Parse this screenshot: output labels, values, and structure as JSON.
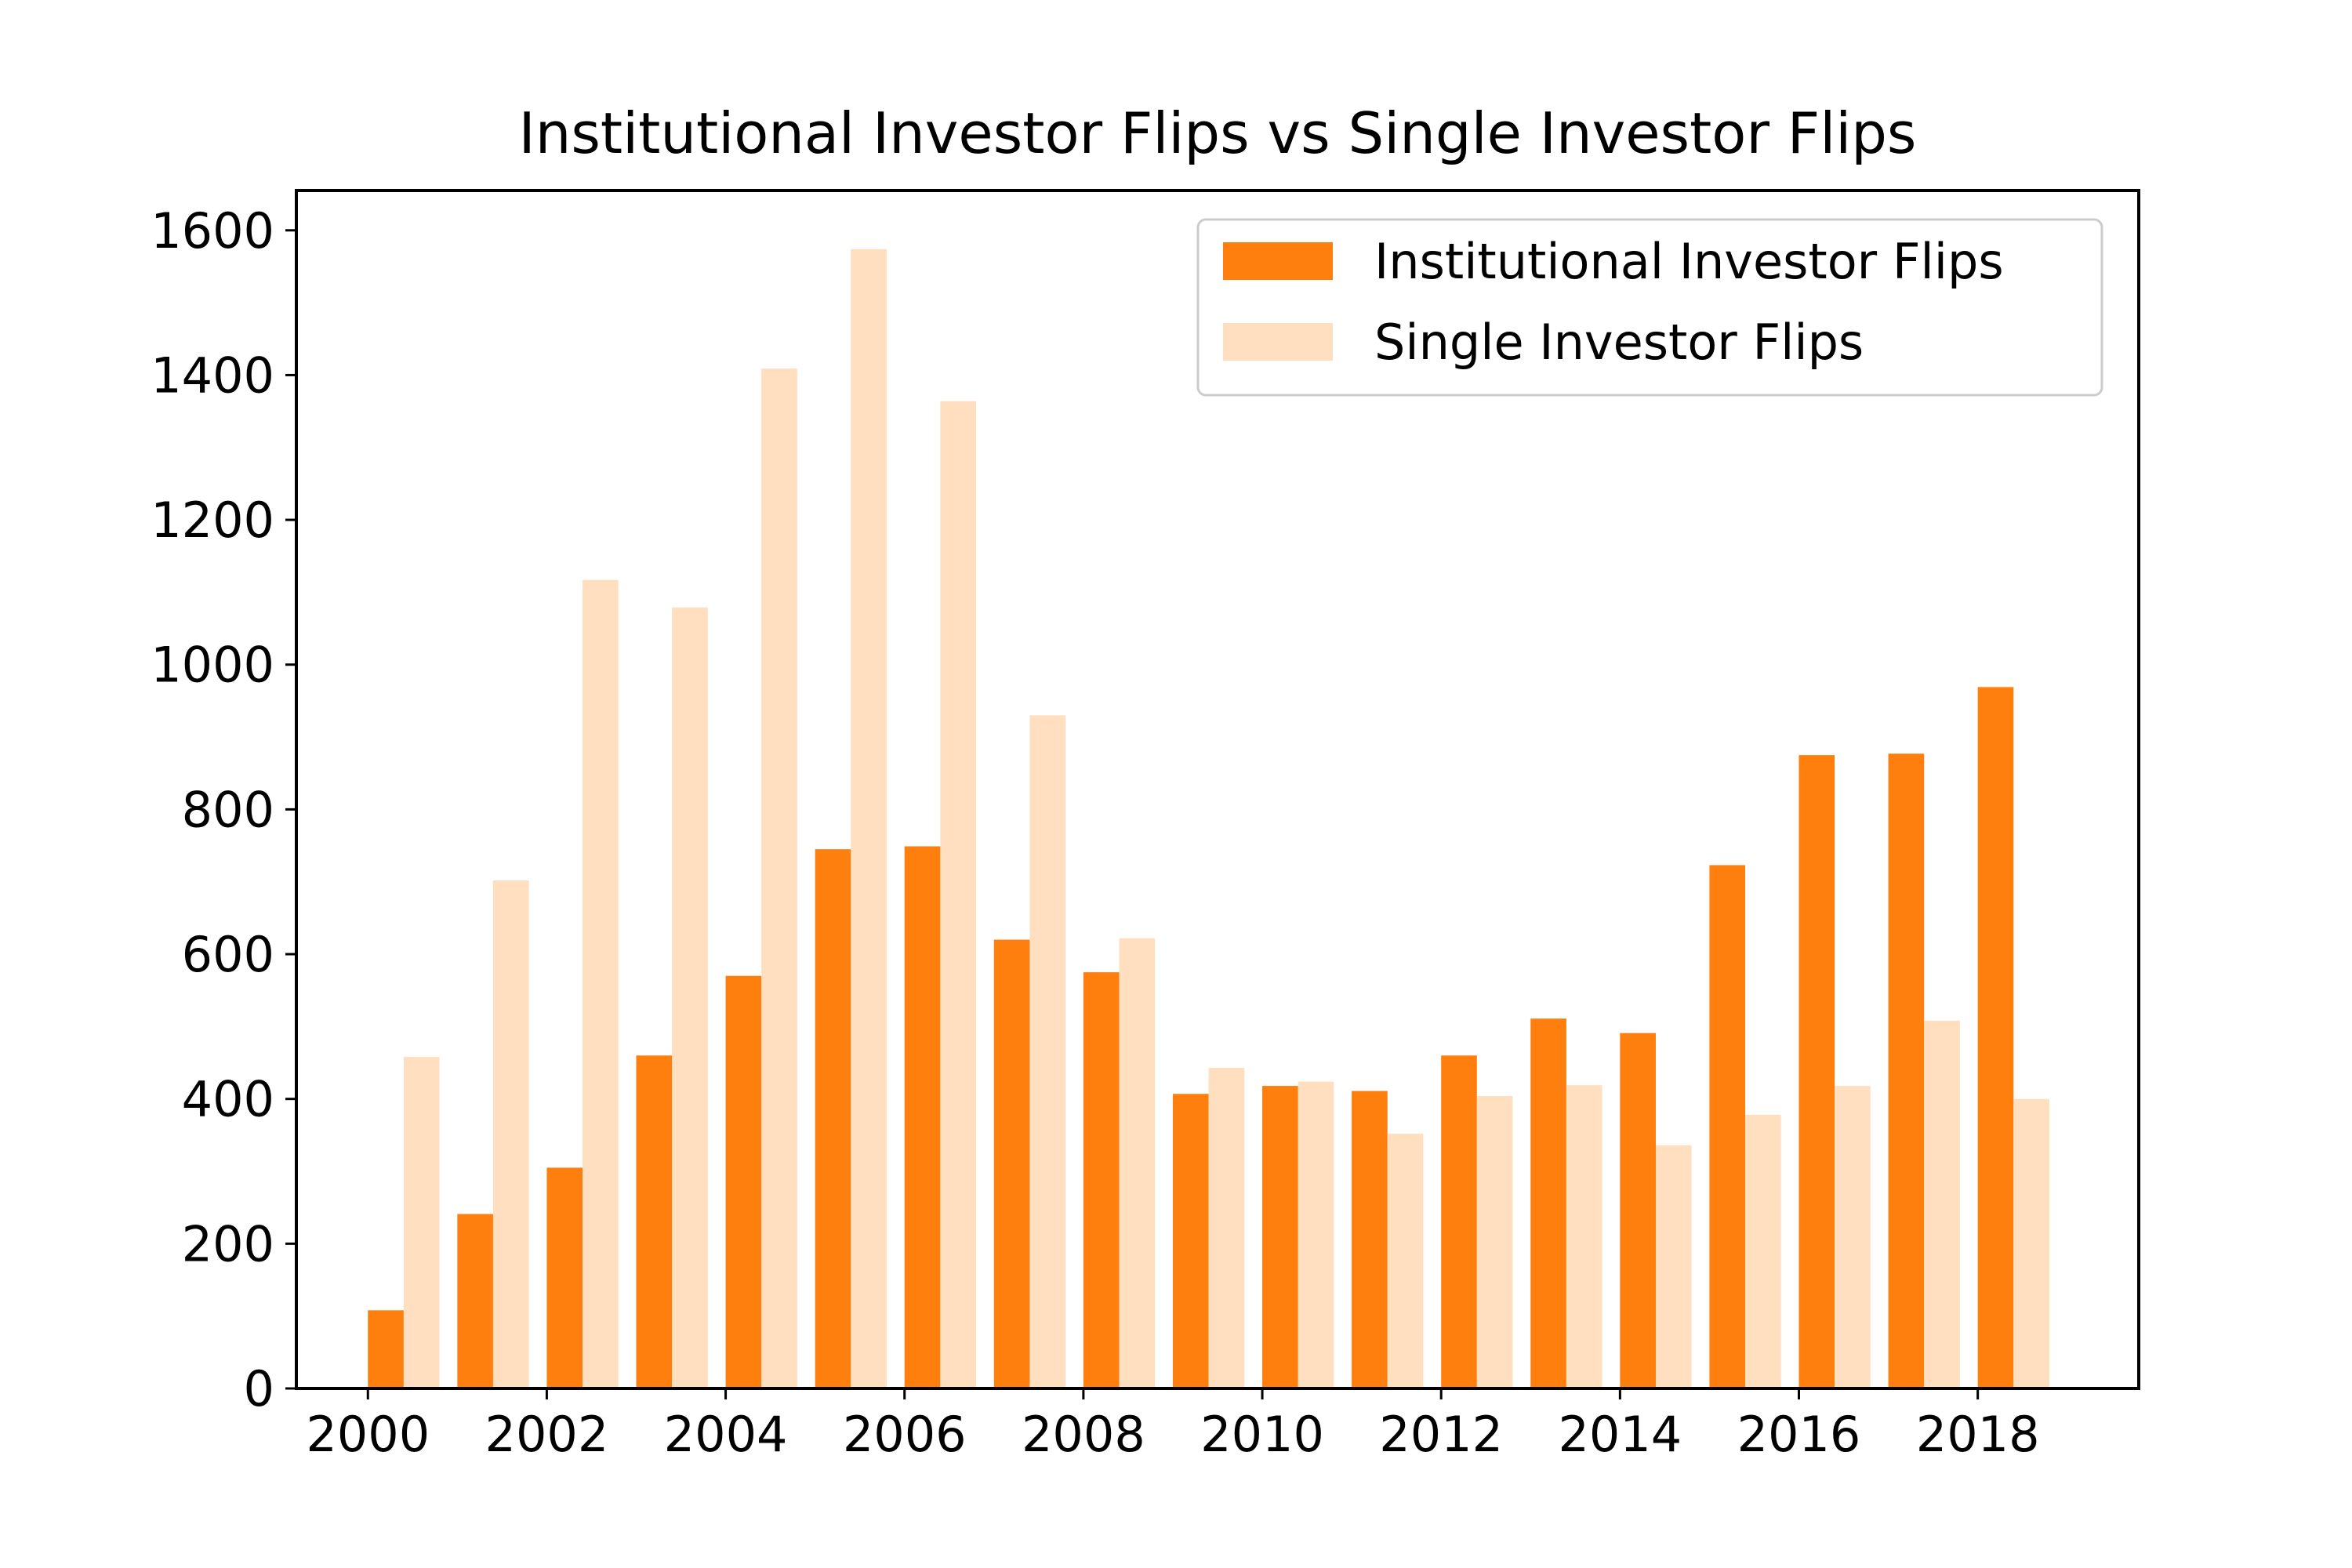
{
  "chart_data": {
    "type": "bar",
    "title": "Institutional Investor Flips vs Single Investor Flips",
    "xlabel": "",
    "ylabel": "",
    "x": [
      2000,
      2001,
      2002,
      2003,
      2004,
      2005,
      2006,
      2007,
      2008,
      2009,
      2010,
      2011,
      2012,
      2013,
      2014,
      2015,
      2016,
      2017,
      2018
    ],
    "xticks": [
      "2000",
      "2002",
      "2004",
      "2006",
      "2008",
      "2010",
      "2012",
      "2014",
      "2016",
      "2018"
    ],
    "yticks": [
      "0",
      "200",
      "400",
      "600",
      "800",
      "1000",
      "1200",
      "1400",
      "1600"
    ],
    "ylim": [
      0,
      1655
    ],
    "xlim": [
      1999.2,
      2019.8
    ],
    "grid": false,
    "legend_position": "top-right",
    "series": [
      {
        "name": "Institutional Investor Flips",
        "color": "#ff7f0e",
        "values": [
          108,
          241,
          305,
          460,
          570,
          745,
          749,
          620,
          575,
          407,
          418,
          411,
          460,
          511,
          491,
          723,
          875,
          877,
          969
        ]
      },
      {
        "name": "Single Investor Flips",
        "color": "#ffdfbf",
        "values": [
          458,
          702,
          1117,
          1079,
          1409,
          1574,
          1364,
          930,
          622,
          443,
          424,
          352,
          404,
          419,
          336,
          378,
          418,
          508,
          400
        ]
      }
    ]
  }
}
